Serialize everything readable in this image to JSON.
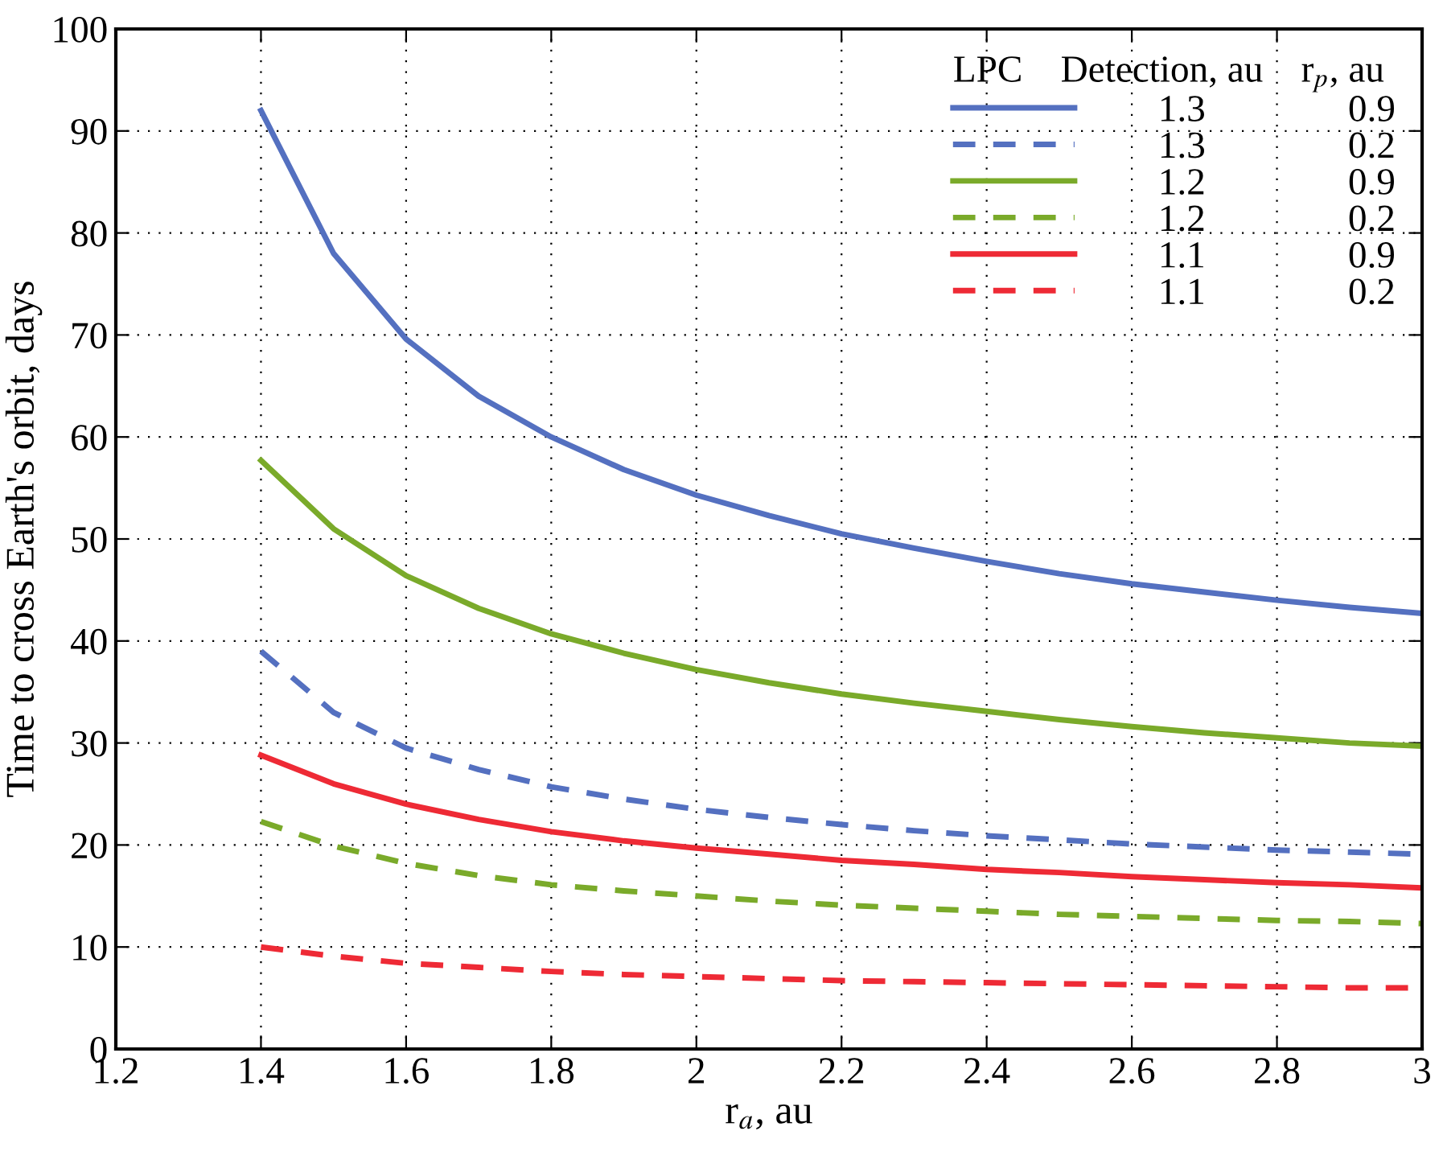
{
  "chart_data": {
    "type": "line",
    "xlabel": "r$_{a}$, au",
    "ylabel": "Time to cross Earth's orbit, days",
    "legend_title": "LPC   Detection, au   r$_{p}$, au",
    "x": [
      1.4,
      1.5,
      1.6,
      1.7,
      1.8,
      1.9,
      2.0,
      2.1,
      2.2,
      2.3,
      2.4,
      2.5,
      2.6,
      2.7,
      2.8,
      2.9,
      3.0
    ],
    "series": [
      {
        "name": "1.3   0.9",
        "color": "#5470c0",
        "line_style": "solid",
        "values": [
          92,
          78,
          69.6,
          64,
          60,
          56.8,
          54.3,
          52.3,
          50.5,
          49.1,
          47.8,
          46.6,
          45.6,
          44.8,
          44,
          43.3,
          42.7
        ]
      },
      {
        "name": "1.3   0.2",
        "color": "#5470c0",
        "line_style": "dashed",
        "values": [
          39,
          33,
          29.5,
          27.4,
          25.7,
          24.5,
          23.5,
          22.7,
          22.0,
          21.4,
          20.9,
          20.5,
          20.1,
          19.8,
          19.5,
          19.3,
          19.1
        ]
      },
      {
        "name": "1.2   0.9",
        "color": "#7aaa2a",
        "line_style": "solid",
        "values": [
          57.7,
          51,
          46.4,
          43.2,
          40.7,
          38.8,
          37.2,
          35.9,
          34.8,
          33.9,
          33.1,
          32.3,
          31.6,
          31.0,
          30.5,
          30.0,
          29.7
        ]
      },
      {
        "name": "1.2   0.2",
        "color": "#7aaa2a",
        "line_style": "dashed",
        "values": [
          22.3,
          19.9,
          18.2,
          17,
          16.1,
          15.5,
          15,
          14.5,
          14.1,
          13.8,
          13.5,
          13.2,
          13,
          12.8,
          12.6,
          12.5,
          12.3
        ]
      },
      {
        "name": "1.1   0.9",
        "color": "#ee2a35",
        "line_style": "solid",
        "values": [
          28.8,
          26,
          24,
          22.5,
          21.3,
          20.4,
          19.7,
          19.1,
          18.5,
          18.1,
          17.6,
          17.3,
          16.9,
          16.6,
          16.3,
          16.1,
          15.8
        ]
      },
      {
        "name": "1.1   0.2",
        "color": "#ee2a35",
        "line_style": "dashed",
        "values": [
          10,
          9.1,
          8.4,
          8,
          7.6,
          7.3,
          7.1,
          6.9,
          6.7,
          6.6,
          6.5,
          6.4,
          6.3,
          6.2,
          6.1,
          6.0,
          6.0
        ]
      }
    ],
    "xlim": [
      1.2,
      3
    ],
    "xticks": [
      {
        "value": 1.2,
        "label": "1.2"
      },
      {
        "value": 1.4,
        "label": "1.4"
      },
      {
        "value": 1.6,
        "label": "1.6"
      },
      {
        "value": 1.8,
        "label": "1.8"
      },
      2,
      {
        "value": 2.2,
        "label": "2.2"
      },
      {
        "value": 2.4,
        "label": "2.4"
      },
      {
        "value": 2.6,
        "label": "2.6"
      },
      {
        "value": 2.8,
        "label": "2.8"
      },
      3
    ],
    "ylim": [
      0,
      100
    ],
    "yticks": [
      0,
      10,
      20,
      30,
      40,
      50,
      60,
      70,
      80,
      90,
      100
    ],
    "grid": true,
    "legend": "top right"
  }
}
